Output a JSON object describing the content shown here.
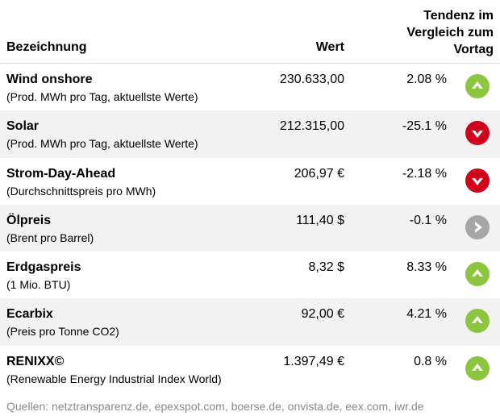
{
  "header": {
    "name": "Bezeichnung",
    "wert": "Wert",
    "tendenz_line1": "Tendenz im",
    "tendenz_line2": "Vergleich zum",
    "tendenz_line3": "Vortag"
  },
  "colors": {
    "up": "#8cc63f",
    "down": "#d0021b",
    "neutral": "#a6a6a6"
  },
  "rows": [
    {
      "name": "Wind onshore",
      "sub": "(Prod. MWh pro Tag, aktuellste Werte)",
      "wert": "230.633,00",
      "pct": "2.08 %",
      "trend": "up",
      "trend_icon": "arrow-up-icon"
    },
    {
      "name": "Solar",
      "sub": "(Prod. MWh pro Tag, aktuellste Werte)",
      "wert": "212.315,00",
      "pct": "-25.1 %",
      "trend": "down",
      "trend_icon": "arrow-down-icon"
    },
    {
      "name": "Strom-Day-Ahead",
      "sub": "(Durchschnittspreis pro MWh)",
      "wert": "206,97 €",
      "pct": "-2.18 %",
      "trend": "down",
      "trend_icon": "arrow-down-icon"
    },
    {
      "name": "Ölpreis",
      "sub": "(Brent pro Barrel)",
      "wert": "111,40 $",
      "pct": "-0.1 %",
      "trend": "neutral",
      "trend_icon": "arrow-right-icon"
    },
    {
      "name": "Erdgaspreis",
      "sub": "(1 Mio. BTU)",
      "wert": "8,32 $",
      "pct": "8.33 %",
      "trend": "up",
      "trend_icon": "arrow-up-icon"
    },
    {
      "name": "Ecarbix",
      "sub": "(Preis pro Tonne CO2)",
      "wert": "92,00 €",
      "pct": "4.21 %",
      "trend": "up",
      "trend_icon": "arrow-up-icon"
    },
    {
      "name": "RENIXX©",
      "sub": "(Renewable Energy Industrial Index World)",
      "wert": "1.397,49 €",
      "pct": "0.8 %",
      "trend": "up",
      "trend_icon": "arrow-up-icon"
    }
  ],
  "footer": "Quellen: netztransparenz.de, epexspot.com, boerse.de, onvista.de, eex.com, iwr.de"
}
